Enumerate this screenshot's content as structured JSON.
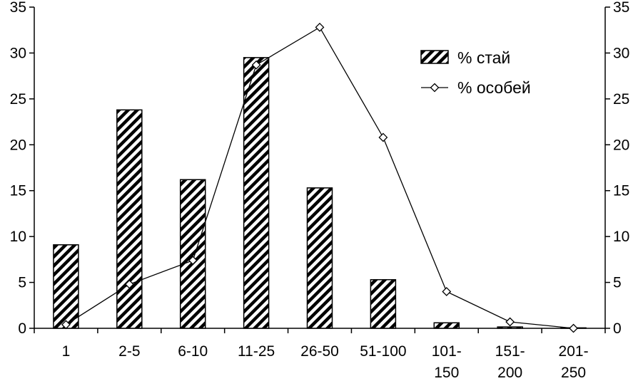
{
  "chart_data": {
    "type": "bar",
    "categories": [
      [
        "1"
      ],
      [
        "2-5"
      ],
      [
        "6-10"
      ],
      [
        "11-25"
      ],
      [
        "26-50"
      ],
      [
        "51-100"
      ],
      [
        "101-",
        "150"
      ],
      [
        "151-",
        "200"
      ],
      [
        "201-",
        "250"
      ]
    ],
    "series": [
      {
        "name": "% стай",
        "kind": "bar",
        "axis": "left",
        "values": [
          9.1,
          23.8,
          16.2,
          29.5,
          15.3,
          5.3,
          0.6,
          0.15,
          0.05
        ]
      },
      {
        "name": "% особей",
        "kind": "line",
        "marker": "diamond",
        "axis": "right",
        "values": [
          0.4,
          4.8,
          7.4,
          28.7,
          32.8,
          20.8,
          4.0,
          0.7,
          0.0
        ]
      }
    ],
    "ylim": [
      0,
      35
    ],
    "y_ticks": [
      0,
      5,
      10,
      15,
      20,
      25,
      30,
      35
    ],
    "y2lim": [
      0,
      35
    ],
    "y2_ticks": [
      0,
      5,
      10,
      15,
      20,
      25,
      30,
      35
    ],
    "xlabel": "",
    "ylabel": "",
    "title": "",
    "legend_position": "top-right",
    "grid": false,
    "bar_pattern": "diagonal-hatch",
    "colors": {
      "ink": "#000000",
      "background": "#ffffff"
    }
  }
}
